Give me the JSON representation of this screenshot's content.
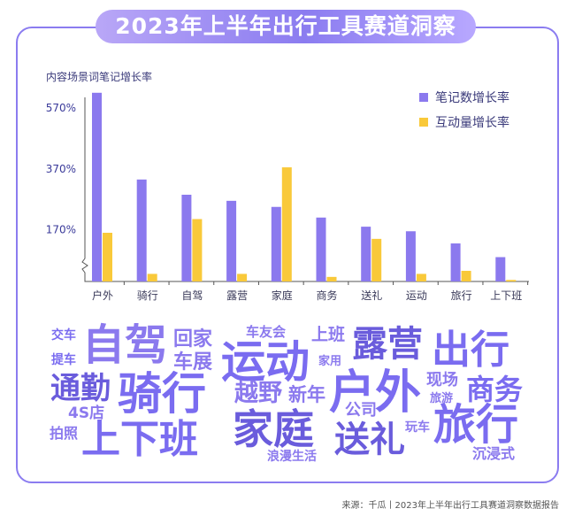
{
  "header": {
    "title": "2023年上半年出行工具赛道洞察"
  },
  "chart_data": {
    "type": "bar",
    "title": "2023年上半年出行工具赛道洞察",
    "ylabel": "内容场景词笔记增长率",
    "xlabel": "",
    "categories": [
      "户外",
      "骑行",
      "自驾",
      "露营",
      "家庭",
      "商务",
      "送礼",
      "运动",
      "旅行",
      "上下班"
    ],
    "series": [
      {
        "name": "笔记数增长率",
        "color": "#8b79ee",
        "values": [
          620,
          335,
          285,
          265,
          245,
          210,
          180,
          165,
          125,
          80
        ]
      },
      {
        "name": "互动量增长率",
        "color": "#f9c93a",
        "values": [
          160,
          25,
          205,
          25,
          375,
          15,
          140,
          25,
          35,
          5
        ]
      }
    ],
    "yticks": [
      170,
      370,
      570
    ],
    "ytick_labels": [
      "170%",
      "370%",
      "570%"
    ],
    "legend_position": "top-right",
    "grid": false
  },
  "word_cloud": [
    {
      "text": "交车",
      "color": "#7a6cf0"
    },
    {
      "text": "自驾",
      "color": "#8b79ee"
    },
    {
      "text": "回家",
      "color": "#8b79ee"
    },
    {
      "text": "车友会",
      "color": "#8b79ee"
    },
    {
      "text": "上班",
      "color": "#8b79ee"
    },
    {
      "text": "露营",
      "color": "#6a5cdc"
    },
    {
      "text": "出行",
      "color": "#7a6cf0"
    },
    {
      "text": "提车",
      "color": "#7a6cf0"
    },
    {
      "text": "车展",
      "color": "#8b79ee"
    },
    {
      "text": "运动",
      "color": "#7a6cf0"
    },
    {
      "text": "家用",
      "color": "#8b79ee"
    },
    {
      "text": "通勤",
      "color": "#6a5cdc"
    },
    {
      "text": "骑行",
      "color": "#7a6cf0"
    },
    {
      "text": "越野",
      "color": "#8b79ee"
    },
    {
      "text": "新年",
      "color": "#8b79ee"
    },
    {
      "text": "户外",
      "color": "#7a6cf0"
    },
    {
      "text": "现场",
      "color": "#8b79ee"
    },
    {
      "text": "商务",
      "color": "#7a6cf0"
    },
    {
      "text": "4S店",
      "color": "#8b79ee"
    },
    {
      "text": "公司",
      "color": "#8b79ee"
    },
    {
      "text": "旅游",
      "color": "#8b79ee"
    },
    {
      "text": "家庭",
      "color": "#6a5cdc"
    },
    {
      "text": "旅行",
      "color": "#7a6cf0"
    },
    {
      "text": "拍照",
      "color": "#8b79ee"
    },
    {
      "text": "上下班",
      "color": "#7a6cf0"
    },
    {
      "text": "送礼",
      "color": "#6a5cdc"
    },
    {
      "text": "玩车",
      "color": "#8b79ee"
    },
    {
      "text": "浪漫生活",
      "color": "#8b79ee"
    },
    {
      "text": "沉浸式",
      "color": "#8b79ee"
    }
  ],
  "footer": {
    "source": "来源：千瓜丨2023年上半年出行工具赛道洞察数据报告"
  }
}
